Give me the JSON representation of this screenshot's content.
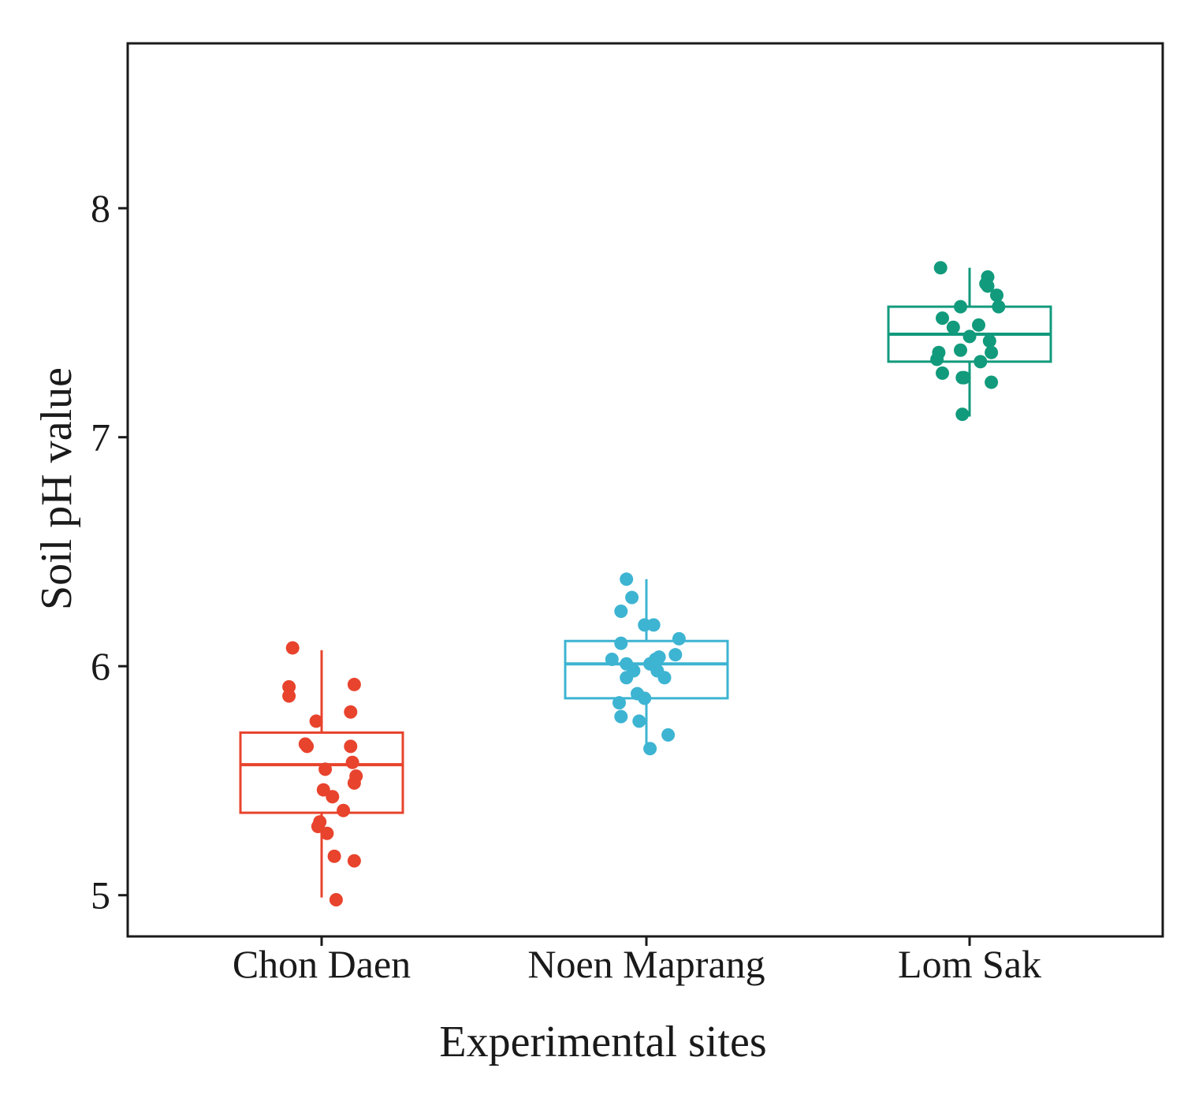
{
  "chart_data": {
    "type": "box",
    "title": "",
    "xlabel": "Experimental sites",
    "ylabel": "Soil pH value",
    "ylim": [
      4.82,
      8.72
    ],
    "yticks": [
      5,
      6,
      7,
      8
    ],
    "grid": false,
    "legend": "none",
    "categories": [
      "Chon Daen",
      "Noen Maprang",
      "Lom Sak"
    ],
    "colors": [
      "#e8432d",
      "#3db4d2",
      "#119a7c"
    ],
    "boxes": [
      {
        "name": "Chon Daen",
        "whisker_low": 4.99,
        "q1": 5.36,
        "median": 5.57,
        "q3": 5.71,
        "whisker_high": 6.07
      },
      {
        "name": "Noen Maprang",
        "whisker_low": 5.64,
        "q1": 5.86,
        "median": 6.01,
        "q3": 6.11,
        "whisker_high": 6.38
      },
      {
        "name": "Lom Sak",
        "whisker_low": 7.09,
        "q1": 7.33,
        "median": 7.45,
        "q3": 7.57,
        "whisker_high": 7.74
      }
    ],
    "points": [
      [
        [
          -0.16,
          6.08
        ],
        [
          -0.18,
          5.91
        ],
        [
          -0.18,
          5.87
        ],
        [
          0.18,
          5.92
        ],
        [
          0.16,
          5.8
        ],
        [
          -0.03,
          5.76
        ],
        [
          -0.09,
          5.66
        ],
        [
          -0.08,
          5.65
        ],
        [
          0.16,
          5.65
        ],
        [
          0.17,
          5.58
        ],
        [
          0.02,
          5.55
        ],
        [
          0.19,
          5.52
        ],
        [
          0.18,
          5.49
        ],
        [
          0.01,
          5.46
        ],
        [
          0.06,
          5.43
        ],
        [
          0.12,
          5.37
        ],
        [
          -0.01,
          5.32
        ],
        [
          -0.02,
          5.3
        ],
        [
          0.03,
          5.27
        ],
        [
          0.07,
          5.17
        ],
        [
          0.18,
          5.15
        ],
        [
          0.08,
          4.98
        ]
      ],
      [
        [
          -0.11,
          6.38
        ],
        [
          -0.08,
          6.3
        ],
        [
          -0.14,
          6.24
        ],
        [
          -0.01,
          6.18
        ],
        [
          0.04,
          6.18
        ],
        [
          -0.14,
          6.1
        ],
        [
          0.18,
          6.12
        ],
        [
          0.16,
          6.05
        ],
        [
          0.07,
          6.04
        ],
        [
          0.05,
          6.03
        ],
        [
          -0.19,
          6.03
        ],
        [
          -0.11,
          6.01
        ],
        [
          0.02,
          6.01
        ],
        [
          -0.07,
          5.98
        ],
        [
          0.06,
          5.98
        ],
        [
          -0.11,
          5.95
        ],
        [
          0.1,
          5.95
        ],
        [
          -0.05,
          5.88
        ],
        [
          -0.01,
          5.86
        ],
        [
          -0.15,
          5.84
        ],
        [
          -0.14,
          5.78
        ],
        [
          -0.04,
          5.76
        ],
        [
          0.12,
          5.7
        ],
        [
          0.02,
          5.64
        ]
      ],
      [
        [
          -0.16,
          7.74
        ],
        [
          0.1,
          7.7
        ],
        [
          0.09,
          7.67
        ],
        [
          0.1,
          7.66
        ],
        [
          0.15,
          7.62
        ],
        [
          0.16,
          7.57
        ],
        [
          -0.05,
          7.57
        ],
        [
          -0.15,
          7.52
        ],
        [
          -0.09,
          7.48
        ],
        [
          0.05,
          7.49
        ],
        [
          0.0,
          7.44
        ],
        [
          0.11,
          7.42
        ],
        [
          -0.17,
          7.37
        ],
        [
          0.12,
          7.37
        ],
        [
          -0.18,
          7.34
        ],
        [
          0.06,
          7.33
        ],
        [
          -0.05,
          7.38
        ],
        [
          -0.15,
          7.28
        ],
        [
          -0.03,
          7.26
        ],
        [
          -0.04,
          7.26
        ],
        [
          0.12,
          7.24
        ],
        [
          -0.04,
          7.1
        ]
      ]
    ]
  }
}
